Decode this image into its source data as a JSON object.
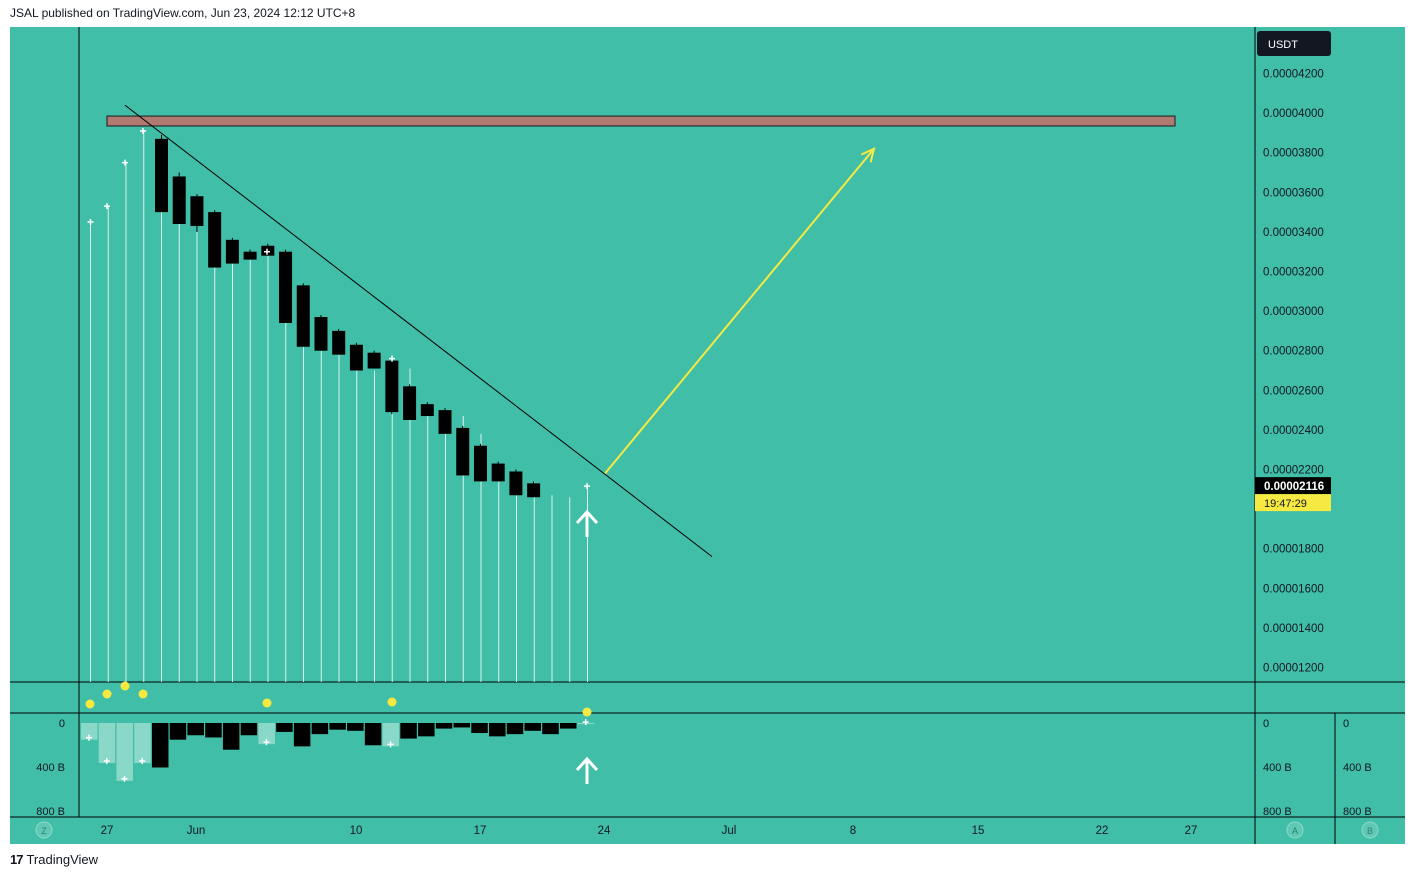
{
  "header": {
    "published": "JSAL published on TradingView.com, Jun 23, 2024 12:12 UTC+8"
  },
  "footer": {
    "brand": "TradingView",
    "logo_glyph": "17"
  },
  "scale": {
    "currency": "USDT"
  },
  "price_label": {
    "value": "0.00002116",
    "countdown": "19:47:29"
  },
  "colors": {
    "background": "#40bea7",
    "candle": "#000000",
    "resistance": "#b07a73",
    "arrow": "#f5e942",
    "dot": "#f5e942"
  },
  "chart_data": {
    "type": "candlestick",
    "price_axis": {
      "ylim": [
        1.1e-05,
        4.32e-05
      ],
      "ticks": [
        "0.00004200",
        "0.00004000",
        "0.00003800",
        "0.00003600",
        "0.00003400",
        "0.00003200",
        "0.00003000",
        "0.00002800",
        "0.00002600",
        "0.00002400",
        "0.00002200",
        "0.00001800",
        "0.00001600",
        "0.00001400",
        "0.00001200"
      ]
    },
    "x_axis": {
      "labels": [
        "27",
        "Jun",
        "10",
        "17",
        "24",
        "Jul",
        "8",
        "15",
        "22",
        "27"
      ]
    },
    "candles": [
      {
        "o": 3.87e-05,
        "h": 3.89e-05,
        "l": 3.5e-05,
        "c": 3.5e-05
      },
      {
        "o": 3.68e-05,
        "h": 3.7e-05,
        "l": 3.44e-05,
        "c": 3.44e-05
      },
      {
        "o": 3.58e-05,
        "h": 3.59e-05,
        "l": 3.4e-05,
        "c": 3.43e-05
      },
      {
        "o": 3.5e-05,
        "h": 3.51e-05,
        "l": 3.22e-05,
        "c": 3.22e-05
      },
      {
        "o": 3.36e-05,
        "h": 3.37e-05,
        "l": 3.24e-05,
        "c": 3.24e-05
      },
      {
        "o": 3.3e-05,
        "h": 3.31e-05,
        "l": 3.26e-05,
        "c": 3.26e-05
      },
      {
        "o": 3.33e-05,
        "h": 3.34e-05,
        "l": 3.28e-05,
        "c": 3.28e-05
      },
      {
        "o": 3.3e-05,
        "h": 3.31e-05,
        "l": 2.94e-05,
        "c": 2.94e-05
      },
      {
        "o": 3.13e-05,
        "h": 3.14e-05,
        "l": 2.82e-05,
        "c": 2.82e-05
      },
      {
        "o": 2.97e-05,
        "h": 2.98e-05,
        "l": 2.8e-05,
        "c": 2.8e-05
      },
      {
        "o": 2.9e-05,
        "h": 2.91e-05,
        "l": 2.78e-05,
        "c": 2.78e-05
      },
      {
        "o": 2.83e-05,
        "h": 2.84e-05,
        "l": 2.7e-05,
        "c": 2.7e-05
      },
      {
        "o": 2.79e-05,
        "h": 2.8e-05,
        "l": 2.71e-05,
        "c": 2.71e-05
      },
      {
        "o": 2.75e-05,
        "h": 2.76e-05,
        "l": 2.48e-05,
        "c": 2.49e-05
      },
      {
        "o": 2.62e-05,
        "h": 2.63e-05,
        "l": 2.45e-05,
        "c": 2.45e-05
      },
      {
        "o": 2.53e-05,
        "h": 2.54e-05,
        "l": 2.47e-05,
        "c": 2.47e-05
      },
      {
        "o": 2.5e-05,
        "h": 2.51e-05,
        "l": 2.38e-05,
        "c": 2.38e-05
      },
      {
        "o": 2.41e-05,
        "h": 2.42e-05,
        "l": 2.17e-05,
        "c": 2.17e-05
      },
      {
        "o": 2.32e-05,
        "h": 2.33e-05,
        "l": 2.14e-05,
        "c": 2.14e-05
      },
      {
        "o": 2.23e-05,
        "h": 2.24e-05,
        "l": 2.14e-05,
        "c": 2.14e-05
      },
      {
        "o": 2.19e-05,
        "h": 2.2e-05,
        "l": 2.07e-05,
        "c": 2.07e-05
      },
      {
        "o": 2.13e-05,
        "h": 2.14e-05,
        "l": 2.06e-05,
        "c": 2.06e-05
      }
    ],
    "vertical_lines": [
      {
        "top": 3.45e-05
      },
      {
        "top": 3.53e-05
      },
      {
        "top": 3.75e-05
      },
      {
        "top": 3.91e-05
      },
      {
        "top": 3.5e-05
      },
      {
        "top": 3.44e-05
      },
      {
        "top": 3.43e-05
      },
      {
        "top": 3.22e-05
      },
      {
        "top": 3.24e-05
      },
      {
        "top": 3.27e-05
      },
      {
        "top": 3.3e-05
      },
      {
        "top": 3.28e-05
      },
      {
        "top": 2.94e-05
      },
      {
        "top": 2.82e-05
      },
      {
        "top": 2.8e-05
      },
      {
        "top": 2.78e-05
      },
      {
        "top": 2.7e-05
      },
      {
        "top": 2.76e-05
      },
      {
        "top": 2.71e-05
      },
      {
        "top": 2.49e-05
      },
      {
        "top": 2.45e-05
      },
      {
        "top": 2.47e-05
      },
      {
        "top": 2.38e-05
      },
      {
        "top": 2.17e-05
      },
      {
        "top": 2.14e-05
      },
      {
        "top": 2.14e-05
      },
      {
        "top": 2.07e-05
      },
      {
        "top": 2.06e-05
      },
      {
        "top": 2.116e-05
      }
    ],
    "plus_marks": [
      3.45e-05,
      3.53e-05,
      3.75e-05,
      3.91e-05,
      3.3e-05,
      2.76e-05,
      2.116e-05
    ],
    "resistance_zone": {
      "low": 3.935e-05,
      "high": 3.985e-05
    },
    "trendline": {
      "start": 4.04e-05,
      "end": 1.76e-05
    },
    "projection_arrow": {
      "start": 2.18e-05,
      "end": 3.82e-05
    },
    "up_arrow_marker": true,
    "indicator_dots": [
      1,
      1,
      1,
      1,
      1,
      1,
      1
    ],
    "sub_axis": {
      "ticks": [
        "0",
        "400 B",
        "800 B"
      ],
      "range": [
        0,
        800
      ]
    },
    "sub_bars": [
      {
        "v": 150,
        "kind": "light"
      },
      {
        "v": 360,
        "kind": "light"
      },
      {
        "v": 520,
        "kind": "light"
      },
      {
        "v": 360,
        "kind": "light"
      },
      {
        "v": 400,
        "kind": "dark"
      },
      {
        "v": 150,
        "kind": "dark"
      },
      {
        "v": 110,
        "kind": "dark"
      },
      {
        "v": 130,
        "kind": "dark"
      },
      {
        "v": 240,
        "kind": "dark"
      },
      {
        "v": 110,
        "kind": "dark"
      },
      {
        "v": 190,
        "kind": "light"
      },
      {
        "v": 80,
        "kind": "dark"
      },
      {
        "v": 210,
        "kind": "dark"
      },
      {
        "v": 100,
        "kind": "dark"
      },
      {
        "v": 60,
        "kind": "dark"
      },
      {
        "v": 70,
        "kind": "dark"
      },
      {
        "v": 200,
        "kind": "dark"
      },
      {
        "v": 210,
        "kind": "light"
      },
      {
        "v": 140,
        "kind": "dark"
      },
      {
        "v": 120,
        "kind": "dark"
      },
      {
        "v": 50,
        "kind": "dark"
      },
      {
        "v": 40,
        "kind": "dark"
      },
      {
        "v": 90,
        "kind": "dark"
      },
      {
        "v": 120,
        "kind": "dark"
      },
      {
        "v": 100,
        "kind": "dark"
      },
      {
        "v": 70,
        "kind": "dark"
      },
      {
        "v": 100,
        "kind": "dark"
      },
      {
        "v": 50,
        "kind": "dark"
      },
      {
        "v": 10,
        "kind": "light"
      }
    ],
    "bottom_badges": [
      "Z",
      "A",
      "B"
    ]
  }
}
